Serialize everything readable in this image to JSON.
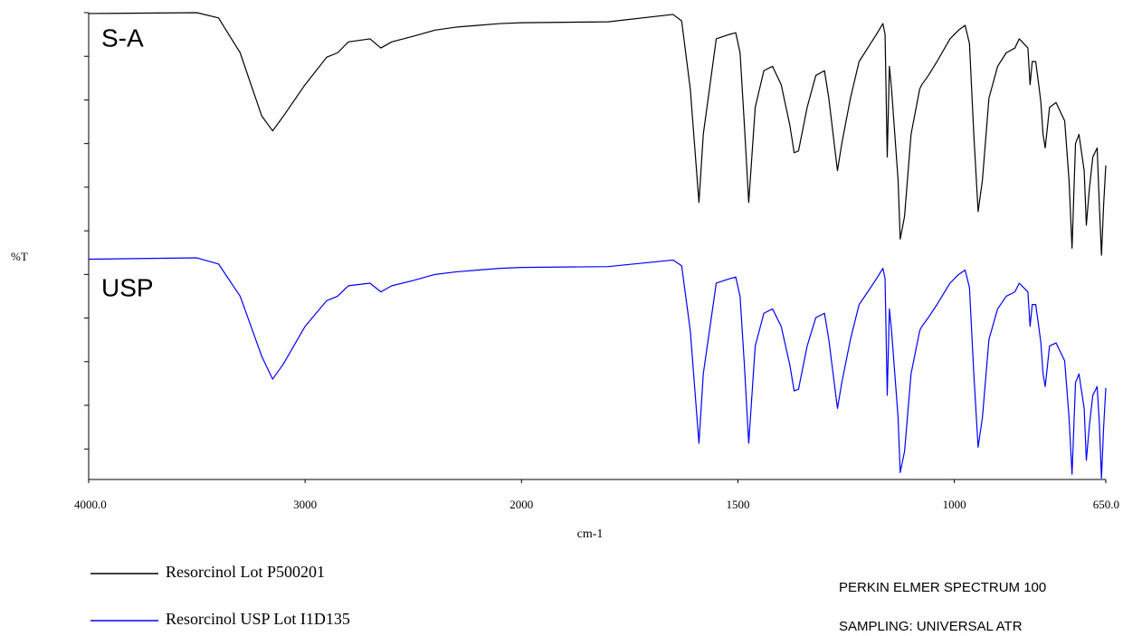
{
  "chart_data": {
    "type": "line",
    "x_label": "cm-1",
    "y_label": "%T",
    "xlim": [
      4000,
      650
    ],
    "x_break": 2000,
    "xticks": [
      {
        "value": 4000,
        "label": "4000.0"
      },
      3000,
      2000,
      1500,
      1000,
      {
        "value": 650,
        "label": "650.0"
      }
    ],
    "ylim": [
      -0.7,
      10
    ],
    "yticks": [
      0,
      1,
      2,
      3,
      4,
      5,
      6,
      7,
      8,
      9,
      10
    ],
    "x": [
      4000,
      3500,
      3400,
      3300,
      3250,
      3200,
      3150,
      3100,
      3000,
      2900,
      2850,
      2800,
      2700,
      2650,
      2600,
      2500,
      2400,
      2300,
      2200,
      2100,
      2000,
      1800,
      1650,
      1630,
      1610,
      1590,
      1580,
      1550,
      1520,
      1505,
      1495,
      1485,
      1475,
      1460,
      1440,
      1420,
      1400,
      1380,
      1370,
      1360,
      1340,
      1320,
      1300,
      1290,
      1280,
      1270,
      1260,
      1240,
      1220,
      1200,
      1180,
      1165,
      1160,
      1155,
      1150,
      1145,
      1130,
      1125,
      1115,
      1100,
      1080,
      1075,
      1060,
      1040,
      1010,
      990,
      975,
      965,
      955,
      945,
      935,
      920,
      900,
      880,
      860,
      850,
      830,
      825,
      820,
      812,
      805,
      800,
      795,
      790,
      780,
      765,
      745,
      735,
      728,
      720,
      712,
      700,
      695,
      688,
      680,
      670,
      665,
      660,
      655,
      650
    ],
    "series": [
      {
        "name": "Resorcinol Lot P500201",
        "label": "S-A",
        "color": "#000000",
        "values": [
          9.98,
          10.0,
          9.88,
          9.08,
          8.35,
          7.63,
          7.29,
          7.63,
          8.35,
          8.98,
          9.08,
          9.33,
          9.4,
          9.19,
          9.33,
          9.46,
          9.6,
          9.67,
          9.71,
          9.75,
          9.77,
          9.79,
          9.96,
          9.81,
          8.25,
          5.65,
          7.21,
          9.4,
          9.5,
          9.54,
          9.08,
          7.42,
          5.65,
          7.83,
          8.67,
          8.77,
          8.35,
          7.42,
          6.79,
          6.83,
          7.83,
          8.56,
          8.67,
          8.04,
          7.21,
          6.38,
          7.0,
          8.04,
          8.88,
          9.19,
          9.5,
          9.75,
          9.5,
          6.69,
          8.77,
          8.25,
          6.17,
          4.81,
          5.33,
          7.21,
          8.25,
          8.35,
          8.56,
          8.88,
          9.4,
          9.6,
          9.71,
          9.29,
          7.21,
          5.44,
          6.17,
          8.04,
          8.77,
          9.08,
          9.19,
          9.4,
          9.19,
          8.35,
          8.88,
          8.88,
          8.35,
          7.94,
          7.21,
          6.9,
          7.83,
          7.94,
          7.52,
          6.17,
          4.6,
          7.0,
          7.21,
          6.38,
          5.13,
          5.96,
          6.69,
          6.9,
          5.6,
          4.44,
          5.6,
          6.5
        ]
      },
      {
        "name": "Resorcinol USP Lot I1D135",
        "label": "USP",
        "color": "#0000ff",
        "values": [
          4.35,
          4.38,
          4.24,
          3.5,
          2.81,
          2.12,
          1.6,
          1.95,
          2.81,
          3.4,
          3.5,
          3.74,
          3.8,
          3.6,
          3.74,
          3.86,
          4.0,
          4.06,
          4.1,
          4.14,
          4.16,
          4.18,
          4.33,
          4.2,
          2.71,
          0.13,
          1.72,
          3.8,
          3.9,
          3.94,
          3.5,
          1.92,
          0.13,
          2.36,
          3.11,
          3.21,
          2.81,
          1.92,
          1.33,
          1.37,
          2.36,
          3.01,
          3.11,
          2.51,
          1.72,
          0.93,
          1.52,
          2.51,
          3.31,
          3.6,
          3.9,
          4.14,
          3.9,
          1.23,
          3.21,
          2.71,
          0.73,
          -0.54,
          -0.06,
          1.72,
          2.71,
          2.81,
          3.01,
          3.31,
          3.8,
          4.0,
          4.1,
          3.7,
          1.72,
          0.04,
          0.73,
          2.51,
          3.21,
          3.5,
          3.6,
          3.8,
          3.6,
          2.81,
          3.31,
          3.31,
          2.81,
          2.43,
          1.72,
          1.43,
          2.36,
          2.43,
          2.02,
          0.73,
          -0.58,
          1.52,
          1.72,
          0.93,
          -0.26,
          0.53,
          1.23,
          1.43,
          0.6,
          -0.67,
          0.5,
          1.4
        ]
      }
    ],
    "notes": [
      "PERKIN ELMER SPECTRUM 100",
      "SAMPLING: UNIVERSAL ATR"
    ]
  }
}
